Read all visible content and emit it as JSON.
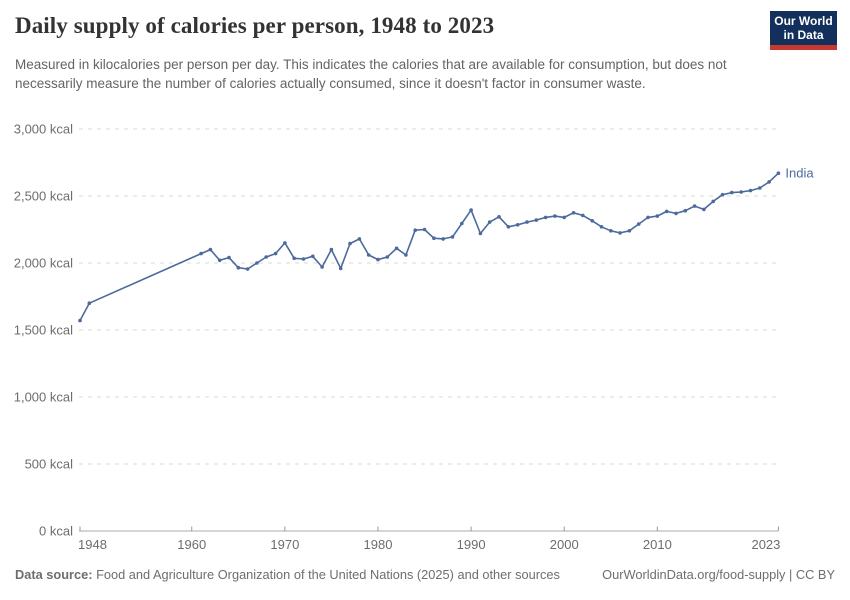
{
  "header": {
    "title": "Daily supply of calories per person, 1948 to 2023",
    "subtitle": "Measured in kilocalories per person per day. This indicates the calories that are available for consumption, but does not necessarily measure the number of calories actually consumed, since it doesn't factor in consumer waste.",
    "logo_line1": "Our World",
    "logo_line2": "in Data"
  },
  "chart_data": {
    "type": "line",
    "title": "Daily supply of calories per person, 1948 to 2023",
    "xlabel": "",
    "ylabel": "",
    "unit": "kcal",
    "xlim": [
      1948,
      2023
    ],
    "ylim": [
      0,
      3000
    ],
    "grid": "horizontal-dashed",
    "legend_position": "end-of-line-label",
    "x_ticks": [
      1948,
      1960,
      1970,
      1980,
      1990,
      2000,
      2010,
      2023
    ],
    "y_ticks": [
      0,
      500,
      1000,
      1500,
      2000,
      2500,
      3000
    ],
    "y_tick_labels": [
      "0 kcal",
      "500 kcal",
      "1,000 kcal",
      "1,500 kcal",
      "2,000 kcal",
      "2,500 kcal",
      "3,000 kcal"
    ],
    "note": "no data points between 1949 and 1961; segment drawn straight",
    "series": [
      {
        "name": "India",
        "color": "#4c6a9c",
        "points": [
          [
            1948,
            1570
          ],
          [
            1949,
            1700
          ],
          [
            1961,
            2070
          ],
          [
            1962,
            2100
          ],
          [
            1963,
            2020
          ],
          [
            1964,
            2040
          ],
          [
            1965,
            1965
          ],
          [
            1966,
            1955
          ],
          [
            1967,
            2000
          ],
          [
            1968,
            2045
          ],
          [
            1969,
            2070
          ],
          [
            1970,
            2150
          ],
          [
            1971,
            2035
          ],
          [
            1972,
            2030
          ],
          [
            1973,
            2050
          ],
          [
            1974,
            1970
          ],
          [
            1975,
            2100
          ],
          [
            1976,
            1960
          ],
          [
            1977,
            2145
          ],
          [
            1978,
            2180
          ],
          [
            1979,
            2060
          ],
          [
            1980,
            2025
          ],
          [
            1981,
            2045
          ],
          [
            1982,
            2110
          ],
          [
            1983,
            2060
          ],
          [
            1984,
            2245
          ],
          [
            1985,
            2250
          ],
          [
            1986,
            2185
          ],
          [
            1987,
            2180
          ],
          [
            1988,
            2195
          ],
          [
            1989,
            2295
          ],
          [
            1990,
            2395
          ],
          [
            1991,
            2220
          ],
          [
            1992,
            2305
          ],
          [
            1993,
            2345
          ],
          [
            1994,
            2270
          ],
          [
            1995,
            2285
          ],
          [
            1996,
            2305
          ],
          [
            1997,
            2320
          ],
          [
            1998,
            2340
          ],
          [
            1999,
            2350
          ],
          [
            2000,
            2340
          ],
          [
            2001,
            2375
          ],
          [
            2002,
            2355
          ],
          [
            2003,
            2315
          ],
          [
            2004,
            2270
          ],
          [
            2005,
            2240
          ],
          [
            2006,
            2225
          ],
          [
            2007,
            2240
          ],
          [
            2008,
            2290
          ],
          [
            2009,
            2340
          ],
          [
            2010,
            2350
          ],
          [
            2011,
            2385
          ],
          [
            2012,
            2370
          ],
          [
            2013,
            2390
          ],
          [
            2014,
            2425
          ],
          [
            2015,
            2400
          ],
          [
            2016,
            2460
          ],
          [
            2017,
            2510
          ],
          [
            2018,
            2525
          ],
          [
            2019,
            2530
          ],
          [
            2020,
            2540
          ],
          [
            2021,
            2560
          ],
          [
            2022,
            2605
          ],
          [
            2023,
            2670
          ]
        ]
      }
    ]
  },
  "colors": {
    "line": "#4c6a9c",
    "entity_label": "#4c6a9c",
    "gridline": "#d9d9d9",
    "axis": "#ababab",
    "tick": "#9a9a9a",
    "tick_label": "#6d6d6d",
    "title": "#333333",
    "subtitle": "#646464",
    "footer": "#6e6e6e",
    "logo_bg": "#12305b",
    "logo_stripe": "#c7382e"
  },
  "footer": {
    "datasource_label": "Data source:",
    "datasource_text": " Food and Agriculture Organization of the United Nations (2025) and other sources",
    "credit": "OurWorldinData.org/food-supply | CC BY"
  }
}
